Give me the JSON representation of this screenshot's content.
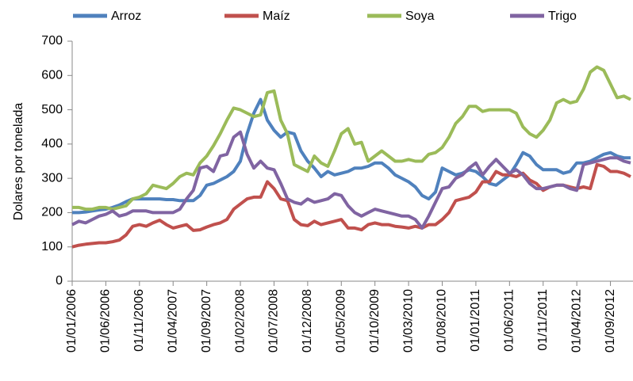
{
  "chart_data": {
    "type": "line",
    "y_label": "Dolares por tonelada",
    "categories": [
      "01/01/2006",
      null,
      null,
      null,
      null,
      "01/06/2006",
      null,
      null,
      null,
      null,
      "01/11/2006",
      null,
      null,
      null,
      null,
      "01/04/2007",
      null,
      null,
      null,
      null,
      "01/09/2007",
      null,
      null,
      null,
      null,
      "01/02/2008",
      null,
      null,
      null,
      null,
      "01/07/2008",
      null,
      null,
      null,
      null,
      "01/12/2008",
      null,
      null,
      null,
      null,
      "01/05/2009",
      null,
      null,
      null,
      null,
      "01/10/2009",
      null,
      null,
      null,
      null,
      "01/03/2010",
      null,
      null,
      null,
      null,
      "01/08/2010",
      null,
      null,
      null,
      null,
      "01/01/2011",
      null,
      null,
      null,
      null,
      "01/06/2011",
      null,
      null,
      null,
      null,
      "01/11/2011",
      null,
      null,
      null,
      null,
      "01/04/2012",
      null,
      null,
      null,
      null,
      "01/09/2012",
      null,
      null,
      null
    ],
    "series": [
      {
        "name": "Arroz",
        "color": "#4f81bd",
        "values": [
          200,
          200,
          202,
          205,
          208,
          210,
          215,
          222,
          232,
          240,
          240,
          240,
          240,
          240,
          238,
          238,
          235,
          235,
          235,
          250,
          280,
          285,
          295,
          305,
          320,
          350,
          430,
          490,
          530,
          470,
          440,
          420,
          435,
          430,
          380,
          350,
          330,
          305,
          320,
          310,
          315,
          320,
          330,
          330,
          335,
          345,
          345,
          330,
          310,
          300,
          290,
          275,
          250,
          240,
          260,
          330,
          320,
          310,
          315,
          325,
          320,
          305,
          285,
          280,
          295,
          310,
          340,
          375,
          365,
          340,
          325,
          325,
          325,
          315,
          320,
          345,
          345,
          350,
          360,
          370,
          375,
          365,
          360,
          360
        ]
      },
      {
        "name": "Maíz",
        "color": "#c0504d",
        "values": [
          100,
          105,
          108,
          110,
          112,
          112,
          115,
          120,
          135,
          160,
          165,
          160,
          170,
          178,
          165,
          155,
          160,
          165,
          148,
          150,
          158,
          165,
          170,
          180,
          210,
          225,
          240,
          245,
          245,
          290,
          270,
          240,
          235,
          180,
          165,
          162,
          175,
          165,
          170,
          175,
          180,
          155,
          155,
          150,
          165,
          170,
          165,
          165,
          160,
          158,
          155,
          160,
          155,
          165,
          165,
          180,
          200,
          235,
          240,
          245,
          260,
          290,
          290,
          320,
          310,
          310,
          305,
          315,
          295,
          285,
          265,
          275,
          280,
          280,
          275,
          270,
          275,
          270,
          340,
          335,
          320,
          320,
          315,
          305
        ]
      },
      {
        "name": "Soya",
        "color": "#9bbb59",
        "values": [
          215,
          215,
          210,
          210,
          215,
          215,
          210,
          215,
          220,
          240,
          245,
          255,
          280,
          275,
          270,
          285,
          305,
          315,
          310,
          345,
          365,
          395,
          430,
          470,
          505,
          500,
          490,
          480,
          485,
          550,
          555,
          470,
          430,
          340,
          330,
          320,
          365,
          345,
          335,
          380,
          430,
          445,
          400,
          405,
          350,
          365,
          380,
          365,
          350,
          350,
          355,
          350,
          350,
          370,
          375,
          390,
          420,
          460,
          480,
          510,
          510,
          495,
          500,
          500,
          500,
          500,
          490,
          450,
          430,
          420,
          440,
          470,
          520,
          530,
          520,
          525,
          560,
          610,
          625,
          615,
          575,
          535,
          540,
          530
        ]
      },
      {
        "name": "Trigo",
        "color": "#8064a2",
        "values": [
          165,
          175,
          170,
          180,
          190,
          195,
          205,
          190,
          195,
          205,
          205,
          205,
          200,
          200,
          200,
          200,
          210,
          240,
          265,
          330,
          335,
          320,
          365,
          370,
          420,
          435,
          370,
          330,
          350,
          330,
          325,
          285,
          240,
          230,
          225,
          240,
          230,
          235,
          240,
          255,
          250,
          220,
          200,
          190,
          200,
          210,
          205,
          200,
          195,
          190,
          190,
          180,
          155,
          190,
          230,
          270,
          275,
          300,
          310,
          330,
          345,
          310,
          335,
          355,
          335,
          315,
          325,
          310,
          285,
          270,
          270,
          275,
          280,
          280,
          270,
          265,
          340,
          345,
          350,
          355,
          360,
          360,
          350,
          345
        ]
      }
    ],
    "ylim": [
      0,
      700
    ],
    "yticks": [
      0,
      100,
      200,
      300,
      400,
      500,
      600,
      700
    ],
    "grid": false
  }
}
